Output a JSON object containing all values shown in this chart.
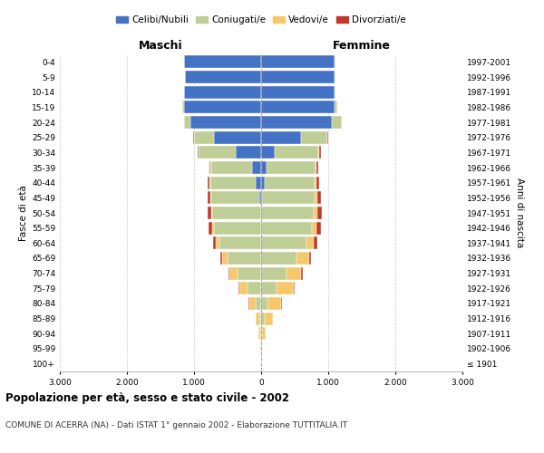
{
  "age_groups": [
    "100+",
    "95-99",
    "90-94",
    "85-89",
    "80-84",
    "75-79",
    "70-74",
    "65-69",
    "60-64",
    "55-59",
    "50-54",
    "45-49",
    "40-44",
    "35-39",
    "30-34",
    "25-29",
    "20-24",
    "15-19",
    "10-14",
    "5-9",
    "0-4"
  ],
  "birth_years": [
    "≤ 1901",
    "1902-1906",
    "1907-1911",
    "1912-1916",
    "1917-1921",
    "1922-1926",
    "1927-1931",
    "1932-1936",
    "1937-1941",
    "1942-1946",
    "1947-1951",
    "1952-1956",
    "1957-1961",
    "1962-1966",
    "1967-1971",
    "1972-1976",
    "1977-1981",
    "1982-1986",
    "1987-1991",
    "1992-1996",
    "1997-2001"
  ],
  "male_celibe": [
    0,
    0,
    0,
    0,
    0,
    0,
    0,
    0,
    0,
    0,
    0,
    30,
    80,
    130,
    380,
    700,
    1050,
    1150,
    1150,
    1130,
    1150
  ],
  "male_coniugato": [
    0,
    5,
    15,
    30,
    80,
    200,
    350,
    500,
    620,
    700,
    730,
    720,
    680,
    620,
    550,
    300,
    100,
    20,
    5,
    2,
    2
  ],
  "male_vedovo": [
    0,
    5,
    20,
    50,
    100,
    130,
    120,
    80,
    50,
    30,
    15,
    10,
    5,
    5,
    2,
    2,
    0,
    0,
    0,
    0,
    0
  ],
  "male_divorziato": [
    0,
    0,
    0,
    5,
    5,
    10,
    20,
    30,
    40,
    50,
    50,
    40,
    30,
    20,
    15,
    5,
    2,
    0,
    0,
    0,
    0
  ],
  "female_celibe": [
    0,
    0,
    0,
    0,
    0,
    0,
    0,
    0,
    0,
    0,
    0,
    20,
    50,
    80,
    200,
    600,
    1050,
    1100,
    1100,
    1100,
    1100
  ],
  "female_coniugata": [
    0,
    5,
    20,
    50,
    100,
    230,
    380,
    530,
    670,
    750,
    780,
    780,
    750,
    730,
    650,
    380,
    150,
    30,
    5,
    2,
    2
  ],
  "female_vedova": [
    2,
    10,
    50,
    120,
    200,
    250,
    220,
    180,
    120,
    80,
    60,
    40,
    20,
    15,
    10,
    5,
    2,
    0,
    0,
    0,
    0
  ],
  "female_divorziata": [
    0,
    0,
    0,
    5,
    10,
    15,
    25,
    35,
    50,
    60,
    65,
    55,
    40,
    30,
    30,
    10,
    5,
    0,
    0,
    0,
    0
  ],
  "colors": {
    "celibe": "#4472C4",
    "coniugato": "#BFCD96",
    "vedovo": "#F5C96B",
    "divorziato": "#C0392B"
  },
  "title": "Popolazione per età, sesso e stato civile - 2002",
  "subtitle": "COMUNE DI ACERRA (NA) - Dati ISTAT 1° gennaio 2002 - Elaborazione TUTTITALIA.IT",
  "xlim": 3000,
  "background_color": "#ffffff",
  "grid_color": "#cccccc"
}
